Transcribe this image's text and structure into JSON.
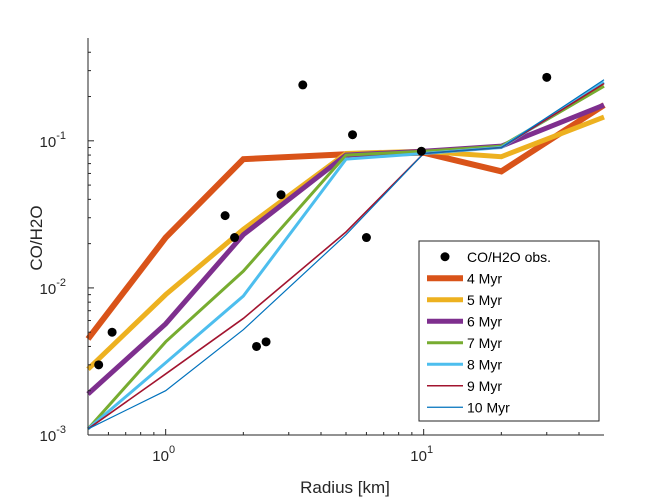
{
  "chart_data": {
    "type": "line",
    "title": "",
    "xlabel": "Radius [km]",
    "ylabel": "CO/H2O",
    "xscale": "log",
    "yscale": "log",
    "xlim": [
      0.5,
      50
    ],
    "ylim": [
      0.001,
      0.5
    ],
    "x_ticks": [
      {
        "value": 1,
        "base": "10",
        "exp": "0"
      },
      {
        "value": 10,
        "base": "10",
        "exp": "1"
      }
    ],
    "y_ticks": [
      {
        "value": 0.001,
        "base": "10",
        "exp": "-3"
      },
      {
        "value": 0.01,
        "base": "10",
        "exp": "-2"
      },
      {
        "value": 0.1,
        "base": "10",
        "exp": "-1"
      }
    ],
    "grid": false,
    "legend_position": "lower-right",
    "observations": {
      "name": "CO/H2O obs.",
      "color": "#000000",
      "points": [
        [
          0.55,
          0.003
        ],
        [
          0.62,
          0.005
        ],
        [
          1.7,
          0.031
        ],
        [
          1.85,
          0.022
        ],
        [
          2.25,
          0.004
        ],
        [
          2.45,
          0.0043
        ],
        [
          2.8,
          0.043
        ],
        [
          3.4,
          0.24
        ],
        [
          5.3,
          0.11
        ],
        [
          6.0,
          0.022
        ],
        [
          9.8,
          0.085
        ],
        [
          30.0,
          0.27
        ]
      ]
    },
    "x": [
      0.5,
      1,
      2,
      5,
      10,
      20,
      50
    ],
    "series": [
      {
        "name": "4 Myr",
        "color": "#D95319",
        "width": 6,
        "values": [
          0.0045,
          0.022,
          0.075,
          0.081,
          0.083,
          0.062,
          0.175
        ]
      },
      {
        "name": "5 Myr",
        "color": "#EDB120",
        "width": 5,
        "values": [
          0.0028,
          0.009,
          0.025,
          0.082,
          0.085,
          0.078,
          0.145
        ]
      },
      {
        "name": "6 Myr",
        "color": "#7E2F8E",
        "width": 5,
        "values": [
          0.0019,
          0.0057,
          0.023,
          0.08,
          0.085,
          0.092,
          0.175
        ]
      },
      {
        "name": "7 Myr",
        "color": "#77AC30",
        "width": 3,
        "values": [
          0.0011,
          0.0043,
          0.013,
          0.08,
          0.085,
          0.092,
          0.235
        ]
      },
      {
        "name": "8 Myr",
        "color": "#4DBEEE",
        "width": 3,
        "values": [
          0.0011,
          0.0031,
          0.0088,
          0.075,
          0.082,
          0.09,
          0.25
        ]
      },
      {
        "name": "9 Myr",
        "color": "#A2142F",
        "width": 1.6,
        "values": [
          0.0011,
          0.0026,
          0.0062,
          0.024,
          0.082,
          0.09,
          0.245
        ]
      },
      {
        "name": "10 Myr",
        "color": "#0072BD",
        "width": 1.2,
        "values": [
          0.0011,
          0.002,
          0.0052,
          0.023,
          0.082,
          0.09,
          0.26
        ]
      }
    ]
  }
}
